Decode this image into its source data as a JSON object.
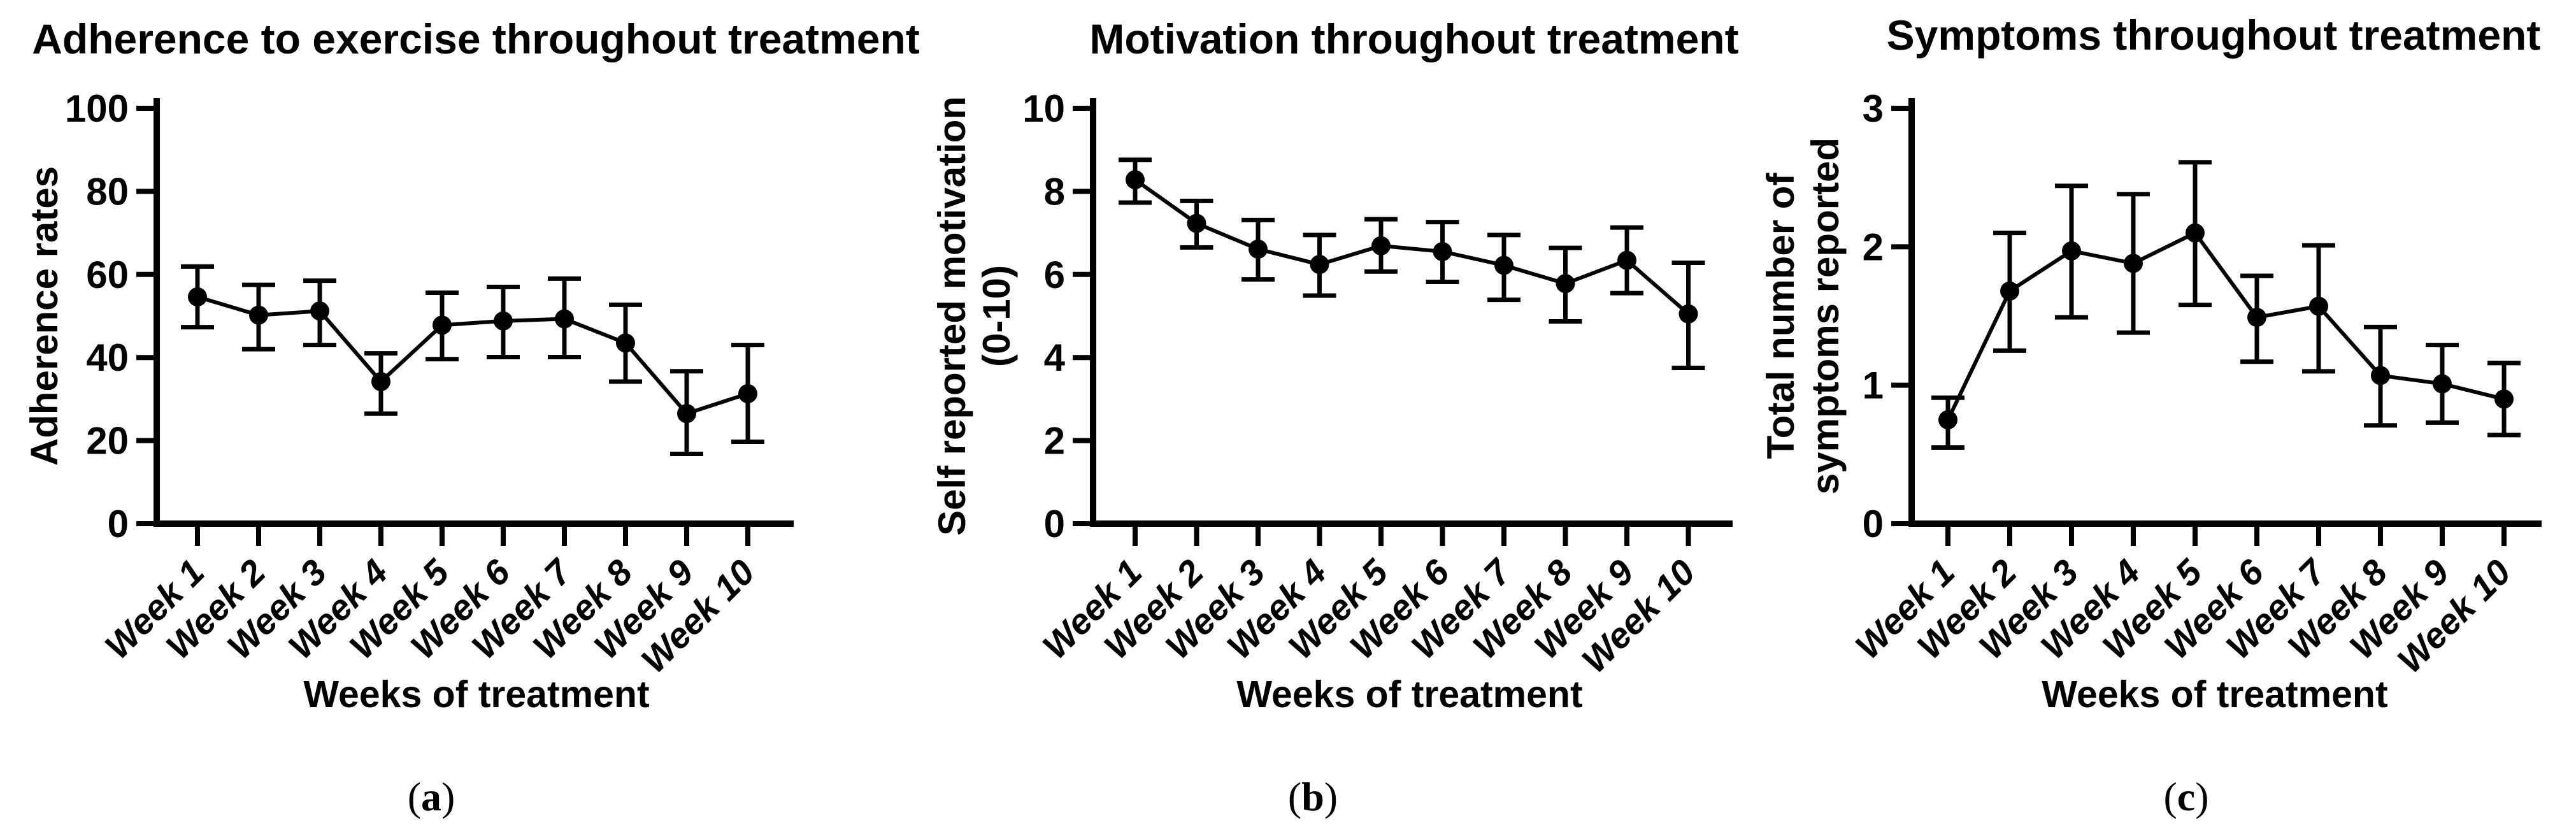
{
  "figure": {
    "background_color": "#ffffff",
    "ink_color": "#000000",
    "captions": [
      "(a)",
      "(b)",
      "(c)"
    ]
  },
  "chart_data": [
    {
      "type": "line",
      "title": "Adherence to exercise throughout treatment",
      "ylabel_lines": [
        "Adherence rates"
      ],
      "xlabel": "Weeks of treatment",
      "caption": "(a)",
      "categories": [
        "Week 1",
        "Week 2",
        "Week 3",
        "Week 4",
        "Week 5",
        "Week 6",
        "Week 7",
        "Week 8",
        "Week 9",
        "Week 10"
      ],
      "values": [
        54.6,
        50.2,
        51.2,
        34.2,
        47.8,
        48.8,
        49.3,
        43.5,
        26.5,
        31.3
      ],
      "error_upper": [
        61.9,
        57.5,
        58.5,
        41.0,
        55.6,
        57.0,
        59.0,
        52.7,
        36.7,
        43.0
      ],
      "error_lower": [
        47.3,
        42.0,
        43.0,
        26.5,
        39.6,
        40.1,
        40.1,
        34.2,
        16.8,
        19.7
      ],
      "ylim": [
        0,
        100
      ],
      "yticks": [
        0,
        20,
        40,
        60,
        80,
        100
      ],
      "grid": false,
      "legend": "none",
      "marker": "filled-circle",
      "series_color": "#000000"
    },
    {
      "type": "line",
      "title": "Motivation throughout treatment",
      "ylabel_lines": [
        "Self reported motivation",
        "(0-10)"
      ],
      "xlabel": "Weeks of treatment",
      "caption": "(b)",
      "categories": [
        "Week 1",
        "Week 2",
        "Week 3",
        "Week 4",
        "Week 5",
        "Week 6",
        "Week 7",
        "Week 8",
        "Week 9",
        "Week 10"
      ],
      "values": [
        8.28,
        7.23,
        6.61,
        6.24,
        6.69,
        6.55,
        6.22,
        5.78,
        6.34,
        5.05
      ],
      "error_upper": [
        8.76,
        7.77,
        7.31,
        6.95,
        7.33,
        7.26,
        6.95,
        6.64,
        7.13,
        6.28
      ],
      "error_lower": [
        7.73,
        6.65,
        5.88,
        5.49,
        6.07,
        5.82,
        5.39,
        4.87,
        5.55,
        3.75
      ],
      "ylim": [
        0,
        10
      ],
      "yticks": [
        0,
        2,
        4,
        6,
        8,
        10
      ],
      "grid": false,
      "legend": "none",
      "marker": "filled-circle",
      "series_color": "#000000"
    },
    {
      "type": "line",
      "title": "Symptoms throughout treatment",
      "ylabel_lines": [
        "Total number of",
        "symptoms reported"
      ],
      "xlabel": "Weeks of treatment",
      "caption": "(c)",
      "categories": [
        "Week 1",
        "Week 2",
        "Week 3",
        "Week 4",
        "Week 5",
        "Week 6",
        "Week 7",
        "Week 8",
        "Week 9",
        "Week 10"
      ],
      "values": [
        0.75,
        1.68,
        1.97,
        1.88,
        2.1,
        1.49,
        1.57,
        1.07,
        1.01,
        0.9
      ],
      "error_upper": [
        0.91,
        2.1,
        2.44,
        2.38,
        2.61,
        1.79,
        2.01,
        1.42,
        1.29,
        1.16
      ],
      "error_lower": [
        0.55,
        1.25,
        1.49,
        1.38,
        1.58,
        1.17,
        1.1,
        0.71,
        0.73,
        0.64
      ],
      "ylim": [
        0,
        3
      ],
      "yticks": [
        0,
        1,
        2,
        3
      ],
      "grid": false,
      "legend": "none",
      "marker": "filled-circle",
      "series_color": "#000000"
    }
  ]
}
